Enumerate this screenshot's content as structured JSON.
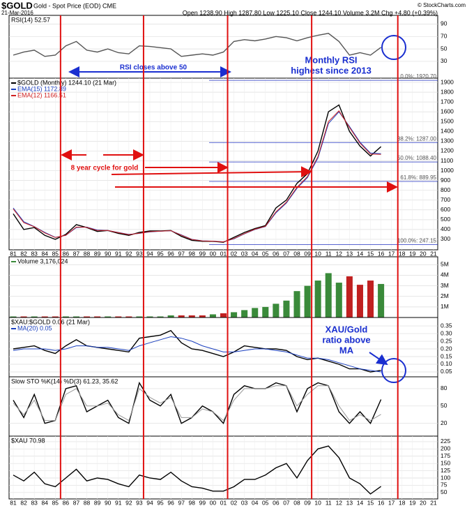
{
  "header": {
    "symbol": "$GOLD",
    "name": "Gold - Spot Price (EOD) CME",
    "date": "21-Mar-2016",
    "quote": "Open 1238.90 High 1287.80 Low 1225.10 Close 1244.10 Volume 3.2M Chg +4.80 (+0.39%)",
    "credit": "© StockCharts.com"
  },
  "chart_data": [
    {
      "type": "line",
      "title": "RSI(14) 52.57",
      "xlim": [
        1980.6,
        2021.4
      ],
      "ylim": [
        3,
        104
      ],
      "yticks": [
        30,
        50,
        70,
        90
      ],
      "x": [
        1981,
        1982,
        1983,
        1984,
        1985,
        1986,
        1987,
        1988,
        1989,
        1990,
        1991,
        1992,
        1993,
        1994,
        1995,
        1996,
        1997,
        1998,
        1999,
        2000,
        2001,
        2002,
        2003,
        2004,
        2005,
        2006,
        2007,
        2008,
        2009,
        2010,
        2011,
        2012,
        2013,
        2014,
        2015,
        2016
      ],
      "series": [
        {
          "color": "#555555",
          "values": [
            40,
            45,
            48,
            38,
            40,
            55,
            62,
            48,
            45,
            50,
            44,
            42,
            55,
            54,
            52,
            50,
            38,
            40,
            42,
            40,
            45,
            62,
            65,
            63,
            66,
            70,
            68,
            63,
            68,
            72,
            75,
            62,
            40,
            44,
            40,
            52.57
          ]
        }
      ],
      "annotations": [
        [
          "RSI closes above 50"
        ],
        [
          "Monthly RSI",
          "highest since 2013"
        ]
      ]
    },
    {
      "type": "line",
      "xlim": [
        1980.6,
        2021.4
      ],
      "ylim": [
        193,
        1943
      ],
      "yticks": [
        300,
        400,
        500,
        600,
        700,
        800,
        900,
        1000,
        1100,
        1200,
        1300,
        1400,
        1500,
        1600,
        1700,
        1800,
        1900
      ],
      "xticks": [
        {
          "value": 1981,
          "label": "81"
        },
        {
          "value": 1982,
          "label": "82"
        },
        {
          "value": 1983,
          "label": "83"
        },
        {
          "value": 1984,
          "label": "84"
        },
        {
          "value": 1985,
          "label": "85"
        },
        {
          "value": 1986,
          "label": "86"
        },
        {
          "value": 1987,
          "label": "87"
        },
        {
          "value": 1988,
          "label": "88"
        },
        {
          "value": 1989,
          "label": "89"
        },
        {
          "value": 1990,
          "label": "90"
        },
        {
          "value": 1991,
          "label": "91"
        },
        {
          "value": 1992,
          "label": "92"
        },
        {
          "value": 1993,
          "label": "93"
        },
        {
          "value": 1994,
          "label": "94"
        },
        {
          "value": 1995,
          "label": "95"
        },
        {
          "value": 1996,
          "label": "96"
        },
        {
          "value": 1997,
          "label": "97"
        },
        {
          "value": 1998,
          "label": "98"
        },
        {
          "value": 1999,
          "label": "99"
        },
        {
          "value": 2000,
          "label": "00"
        },
        {
          "value": 2001,
          "label": "01"
        },
        {
          "value": 2002,
          "label": "02"
        },
        {
          "value": 2003,
          "label": "03"
        },
        {
          "value": 2004,
          "label": "04"
        },
        {
          "value": 2005,
          "label": "05"
        },
        {
          "value": 2006,
          "label": "06"
        },
        {
          "value": 2007,
          "label": "07"
        },
        {
          "value": 2008,
          "label": "08"
        },
        {
          "value": 2009,
          "label": "09"
        },
        {
          "value": 2010,
          "label": "10"
        },
        {
          "value": 2011,
          "label": "11"
        },
        {
          "value": 2012,
          "label": "12"
        },
        {
          "value": 2013,
          "label": "13"
        },
        {
          "value": 2014,
          "label": "14"
        },
        {
          "value": 2015,
          "label": "15"
        },
        {
          "value": 2016,
          "label": "16"
        },
        {
          "value": 2017,
          "label": "17"
        },
        {
          "value": 2018,
          "label": "18"
        },
        {
          "value": 2019,
          "label": "19"
        },
        {
          "value": 2020,
          "label": "20"
        },
        {
          "value": 2021,
          "label": "21"
        }
      ],
      "x": [
        1981,
        1982,
        1983,
        1984,
        1985,
        1986,
        1987,
        1988,
        1989,
        1990,
        1991,
        1992,
        1993,
        1994,
        1995,
        1996,
        1997,
        1998,
        1999,
        2000,
        2001,
        2002,
        2003,
        2004,
        2005,
        2006,
        2007,
        2008,
        2009,
        2010,
        2011,
        2012,
        2013,
        2014,
        2015,
        2016
      ],
      "series": [
        {
          "name": "$GOLD (Monthly) 1244.10 (21 Mar)",
          "color": "#000000",
          "values": [
            560,
            400,
            420,
            340,
            300,
            350,
            450,
            420,
            380,
            390,
            360,
            340,
            370,
            385,
            385,
            390,
            330,
            290,
            280,
            280,
            270,
            320,
            370,
            410,
            440,
            620,
            700,
            870,
            970,
            1200,
            1600,
            1670,
            1400,
            1250,
            1150,
            1244.1
          ]
        },
        {
          "name": "EMA(15) 1172.89",
          "color": "#1a3fbf",
          "values": [
            620,
            480,
            430,
            370,
            320,
            340,
            420,
            425,
            395,
            390,
            370,
            350,
            360,
            375,
            382,
            388,
            345,
            300,
            285,
            282,
            275,
            305,
            355,
            400,
            430,
            570,
            670,
            820,
            930,
            1130,
            1480,
            1600,
            1450,
            1290,
            1180,
            1172.89
          ]
        },
        {
          "name": "EMA(12) 1166.51",
          "color": "#d02020",
          "values": [
            610,
            470,
            428,
            365,
            318,
            342,
            425,
            422,
            390,
            390,
            368,
            348,
            362,
            378,
            383,
            388,
            342,
            298,
            284,
            281,
            274,
            308,
            358,
            403,
            433,
            580,
            678,
            830,
            940,
            1145,
            1500,
            1610,
            1440,
            1280,
            1170,
            1166.51
          ]
        }
      ],
      "fib_levels": [
        {
          "value": 1920.7,
          "label": "0.0%: 1920.70"
        },
        {
          "value": 1287.0,
          "label": "38.2%: 1287.00"
        },
        {
          "value": 1088.4,
          "label": "50.0%: 1088.40"
        },
        {
          "value": 889.95,
          "label": "61.8%: 889.95"
        },
        {
          "value": 247.15,
          "label": "100.0%: 247.15"
        }
      ],
      "cycle_lines": [
        1985.5,
        1993.4,
        2001.4,
        2009.4,
        2017.6
      ],
      "annotations": [
        [
          "8 year cycle for gold"
        ]
      ]
    },
    {
      "type": "bar",
      "xlim": [
        1980.6,
        2021.4
      ],
      "ylim": [
        0,
        5750000
      ],
      "yticks": [
        {
          "value": 1000000,
          "label": "1M"
        },
        {
          "value": 2000000,
          "label": "2M"
        },
        {
          "value": 3000000,
          "label": "3M"
        },
        {
          "value": 4000000,
          "label": "4M"
        },
        {
          "value": 5000000,
          "label": "5M"
        }
      ],
      "x": [
        1981,
        1982,
        1983,
        1984,
        1985,
        1986,
        1987,
        1988,
        1989,
        1990,
        1991,
        1992,
        1993,
        1994,
        1995,
        1996,
        1997,
        1998,
        1999,
        2000,
        2001,
        2002,
        2003,
        2004,
        2005,
        2006,
        2007,
        2008,
        2009,
        2010,
        2011,
        2012,
        2013,
        2014,
        2015,
        2016
      ],
      "series": [
        {
          "name": "Volume 3,176,024",
          "color": "#3a8a3a",
          "values": [
            100000,
            100000,
            100000,
            100000,
            100000,
            100000,
            100000,
            100000,
            100000,
            100000,
            100000,
            100000,
            100000,
            100000,
            100000,
            200000,
            200000,
            200000,
            200000,
            300000,
            400000,
            500000,
            700000,
            900000,
            1000000,
            1300000,
            1600000,
            2500000,
            3000000,
            3500000,
            4200000,
            3300000,
            3900000,
            3100000,
            3500000,
            3176024
          ]
        }
      ]
    },
    {
      "type": "line",
      "title": "$XAU:$GOLD 0.06 (21 Mar)",
      "xlim": [
        1980.6,
        2021.4
      ],
      "ylim": [
        0.018,
        0.405
      ],
      "yticks": [
        0.05,
        {
          "value": 0.1,
          "label": "0.10"
        },
        0.15,
        {
          "value": 0.2,
          "label": "0.20"
        },
        0.25,
        {
          "value": 0.3,
          "label": "0.30"
        },
        0.35
      ],
      "x": [
        1981,
        1982,
        1983,
        1984,
        1985,
        1986,
        1987,
        1988,
        1989,
        1990,
        1991,
        1992,
        1993,
        1994,
        1995,
        1996,
        1997,
        1998,
        1999,
        2000,
        2001,
        2002,
        2003,
        2004,
        2005,
        2006,
        2007,
        2008,
        2009,
        2010,
        2011,
        2012,
        2013,
        2014,
        2015,
        2016
      ],
      "series": [
        {
          "color": "#000000",
          "values": [
            0.2,
            0.21,
            0.22,
            0.19,
            0.17,
            0.22,
            0.26,
            0.22,
            0.21,
            0.2,
            0.19,
            0.18,
            0.27,
            0.28,
            0.29,
            0.32,
            0.24,
            0.2,
            0.19,
            0.17,
            0.15,
            0.18,
            0.22,
            0.21,
            0.2,
            0.2,
            0.19,
            0.15,
            0.13,
            0.14,
            0.12,
            0.1,
            0.07,
            0.07,
            0.05,
            0.06
          ]
        },
        {
          "name": "MA(20) 0.05",
          "color": "#1a3fbf",
          "values": [
            0.19,
            0.2,
            0.2,
            0.2,
            0.19,
            0.2,
            0.22,
            0.22,
            0.21,
            0.21,
            0.2,
            0.19,
            0.22,
            0.24,
            0.26,
            0.28,
            0.27,
            0.25,
            0.22,
            0.2,
            0.18,
            0.18,
            0.19,
            0.2,
            0.2,
            0.19,
            0.18,
            0.16,
            0.14,
            0.14,
            0.13,
            0.11,
            0.09,
            0.07,
            0.06,
            0.05
          ]
        }
      ],
      "annotations": [
        [
          "XAU/Gold",
          "ratio above",
          "MA"
        ]
      ]
    },
    {
      "type": "line",
      "title": "Slow STO %K(14) %D(3) 61.23, 35.62",
      "xlim": [
        1980.6,
        2021.4
      ],
      "ylim": [
        -2,
        100.4
      ],
      "yticks": [
        20,
        50,
        80
      ],
      "x": [
        1981,
        1982,
        1983,
        1984,
        1985,
        1986,
        1987,
        1988,
        1989,
        1990,
        1991,
        1992,
        1993,
        1994,
        1995,
        1996,
        1997,
        1998,
        1999,
        2000,
        2001,
        2002,
        2003,
        2004,
        2005,
        2006,
        2007,
        2008,
        2009,
        2010,
        2011,
        2012,
        2013,
        2014,
        2015,
        2016
      ],
      "series": [
        {
          "color": "#000000",
          "values": [
            60,
            30,
            70,
            20,
            25,
            80,
            85,
            40,
            50,
            60,
            30,
            20,
            90,
            60,
            50,
            70,
            20,
            30,
            50,
            40,
            20,
            70,
            85,
            80,
            80,
            90,
            85,
            40,
            80,
            90,
            85,
            40,
            20,
            40,
            20,
            61.23
          ]
        },
        {
          "color": "#999999",
          "values": [
            55,
            35,
            60,
            25,
            25,
            70,
            80,
            50,
            50,
            55,
            35,
            25,
            80,
            65,
            55,
            65,
            30,
            30,
            45,
            40,
            25,
            60,
            80,
            80,
            80,
            85,
            85,
            50,
            70,
            85,
            85,
            50,
            25,
            35,
            25,
            35.62
          ]
        }
      ]
    },
    {
      "type": "line",
      "title": "$XAU 70.98",
      "xlim": [
        1980.6,
        2021.4
      ],
      "ylim": [
        28,
        244
      ],
      "yticks": [
        50,
        75,
        100,
        125,
        150,
        175,
        200,
        225
      ],
      "xticks": [
        {
          "value": 1981,
          "label": "81"
        },
        {
          "value": 1982,
          "label": "82"
        },
        {
          "value": 1983,
          "label": "83"
        },
        {
          "value": 1984,
          "label": "84"
        },
        {
          "value": 1985,
          "label": "85"
        },
        {
          "value": 1986,
          "label": "86"
        },
        {
          "value": 1987,
          "label": "87"
        },
        {
          "value": 1988,
          "label": "88"
        },
        {
          "value": 1989,
          "label": "89"
        },
        {
          "value": 1990,
          "label": "90"
        },
        {
          "value": 1991,
          "label": "91"
        },
        {
          "value": 1992,
          "label": "92"
        },
        {
          "value": 1993,
          "label": "93"
        },
        {
          "value": 1994,
          "label": "94"
        },
        {
          "value": 1995,
          "label": "95"
        },
        {
          "value": 1996,
          "label": "96"
        },
        {
          "value": 1997,
          "label": "97"
        },
        {
          "value": 1998,
          "label": "98"
        },
        {
          "value": 1999,
          "label": "99"
        },
        {
          "value": 2000,
          "label": "00"
        },
        {
          "value": 2001,
          "label": "01"
        },
        {
          "value": 2002,
          "label": "02"
        },
        {
          "value": 2003,
          "label": "03"
        },
        {
          "value": 2004,
          "label": "04"
        },
        {
          "value": 2005,
          "label": "05"
        },
        {
          "value": 2006,
          "label": "06"
        },
        {
          "value": 2007,
          "label": "07"
        },
        {
          "value": 2008,
          "label": "08"
        },
        {
          "value": 2009,
          "label": "09"
        },
        {
          "value": 2010,
          "label": "10"
        },
        {
          "value": 2011,
          "label": "11"
        },
        {
          "value": 2012,
          "label": "12"
        },
        {
          "value": 2013,
          "label": "13"
        },
        {
          "value": 2014,
          "label": "14"
        },
        {
          "value": 2015,
          "label": "15"
        },
        {
          "value": 2016,
          "label": "16"
        },
        {
          "value": 2017,
          "label": "17"
        },
        {
          "value": 2018,
          "label": "18"
        },
        {
          "value": 2019,
          "label": "19"
        },
        {
          "value": 2020,
          "label": "20"
        },
        {
          "value": 2021,
          "label": "21"
        }
      ],
      "x": [
        1981,
        1982,
        1983,
        1984,
        1985,
        1986,
        1987,
        1988,
        1989,
        1990,
        1991,
        1992,
        1993,
        1994,
        1995,
        1996,
        1997,
        1998,
        1999,
        2000,
        2001,
        2002,
        2003,
        2004,
        2005,
        2006,
        2007,
        2008,
        2009,
        2010,
        2011,
        2012,
        2013,
        2014,
        2015,
        2016
      ],
      "series": [
        {
          "color": "#000000",
          "values": [
            110,
            90,
            120,
            80,
            70,
            100,
            130,
            90,
            100,
            95,
            80,
            70,
            110,
            100,
            95,
            120,
            90,
            70,
            65,
            55,
            55,
            70,
            95,
            95,
            110,
            135,
            150,
            100,
            160,
            200,
            210,
            170,
            100,
            80,
            45,
            70.98
          ]
        }
      ]
    }
  ]
}
